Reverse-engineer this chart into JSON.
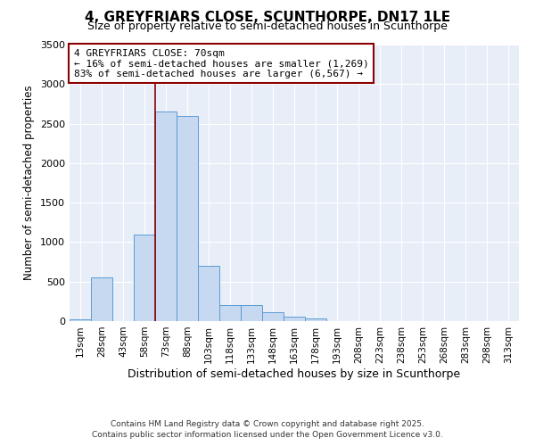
{
  "title": "4, GREYFRIARS CLOSE, SCUNTHORPE, DN17 1LE",
  "subtitle": "Size of property relative to semi-detached houses in Scunthorpe",
  "xlabel": "Distribution of semi-detached houses by size in Scunthorpe",
  "ylabel": "Number of semi-detached properties",
  "bins": [
    "13sqm",
    "28sqm",
    "43sqm",
    "58sqm",
    "73sqm",
    "88sqm",
    "103sqm",
    "118sqm",
    "133sqm",
    "148sqm",
    "163sqm",
    "178sqm",
    "193sqm",
    "208sqm",
    "223sqm",
    "238sqm",
    "253sqm",
    "268sqm",
    "283sqm",
    "298sqm",
    "313sqm"
  ],
  "values": [
    25,
    550,
    0,
    1100,
    2650,
    2600,
    700,
    200,
    200,
    110,
    60,
    30,
    0,
    0,
    0,
    0,
    0,
    0,
    0,
    0,
    0
  ],
  "bar_color": "#c6d9f0",
  "bar_edge_color": "#5b9bd5",
  "property_line_color": "#8b0000",
  "annotation_text": "4 GREYFRIARS CLOSE: 70sqm\n← 16% of semi-detached houses are smaller (1,269)\n83% of semi-detached houses are larger (6,567) →",
  "annotation_box_color": "white",
  "annotation_box_edge_color": "#8b0000",
  "ylim": [
    0,
    3500
  ],
  "yticks": [
    0,
    500,
    1000,
    1500,
    2000,
    2500,
    3000,
    3500
  ],
  "background_color": "#e8eef8",
  "footer_line1": "Contains HM Land Registry data © Crown copyright and database right 2025.",
  "footer_line2": "Contains public sector information licensed under the Open Government Licence v3.0.",
  "title_fontsize": 11,
  "subtitle_fontsize": 9,
  "annotation_fontsize": 8
}
